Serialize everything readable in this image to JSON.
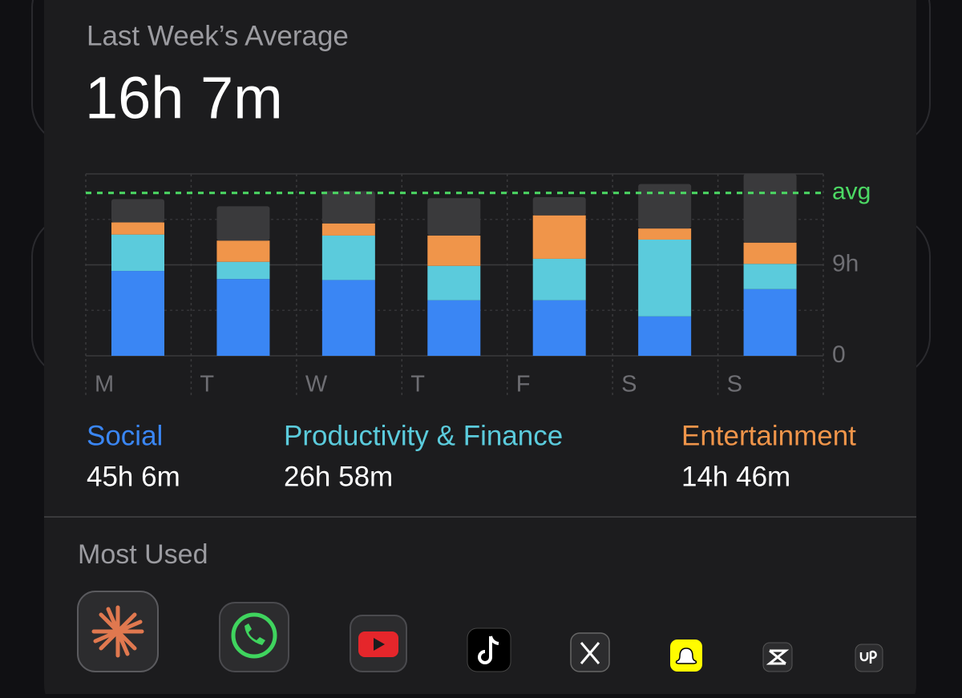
{
  "header": {
    "title": "Last Week’s Average",
    "value": "16h 7m"
  },
  "chart_data": {
    "type": "bar",
    "stacked": true,
    "categories": [
      "M",
      "T",
      "W",
      "T",
      "F",
      "S",
      "S"
    ],
    "series": [
      {
        "name": "Social",
        "color": "#3a86f4",
        "total": "45h 6m",
        "values": [
          8.4,
          7.6,
          7.5,
          5.5,
          5.5,
          3.9,
          6.6
        ]
      },
      {
        "name": "Productivity & Finance",
        "color": "#5bcbdc",
        "total": "26h 58m",
        "values": [
          3.6,
          1.7,
          4.4,
          3.4,
          4.1,
          7.6,
          2.5
        ]
      },
      {
        "name": "Entertainment",
        "color": "#f0954a",
        "total": "14h 46m",
        "values": [
          1.2,
          2.1,
          1.2,
          3.0,
          4.3,
          1.1,
          2.1
        ]
      },
      {
        "color": "#3a3a3c",
        "values": [
          2.3,
          3.4,
          3.2,
          3.7,
          1.8,
          4.4,
          6.8
        ]
      }
    ],
    "ylim": [
      0,
      18
    ],
    "yticks": [
      0,
      {
        "value": 9,
        "label": "9h"
      }
    ],
    "minor_yticks": [
      4.5,
      13.5
    ],
    "grid": true,
    "average": {
      "value": 16.12,
      "label": "avg",
      "color": "#4cd964"
    }
  },
  "most_used": {
    "title": "Most Used"
  }
}
